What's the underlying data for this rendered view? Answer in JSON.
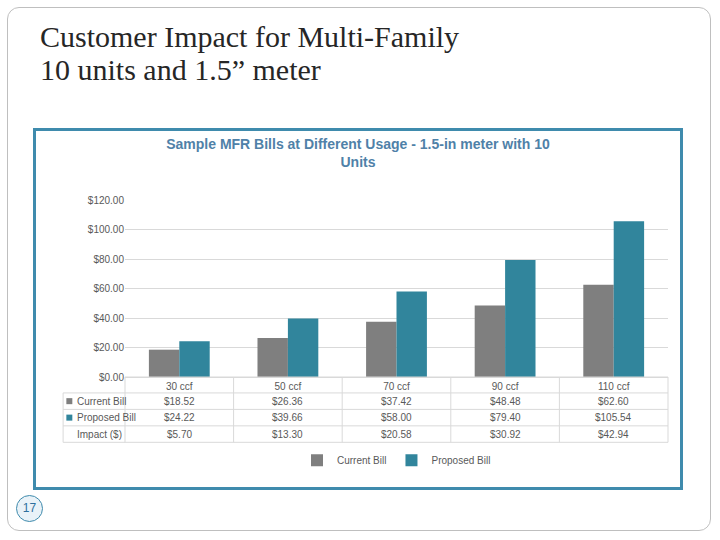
{
  "slide": {
    "title": "Customer Impact for Multi-Family\n10 units and 1.5” meter",
    "page_number": 17
  },
  "chart_data": {
    "type": "bar",
    "title": "Sample MFR Bills at Different Usage - 1.5-in meter with 10\nUnits",
    "categories": [
      "30 ccf",
      "50 ccf",
      "70 ccf",
      "90 ccf",
      "110 ccf"
    ],
    "series": [
      {
        "name": "Current Bill",
        "color": "#7f7f7f",
        "values": [
          18.52,
          26.36,
          37.42,
          48.48,
          62.6
        ],
        "value_labels": [
          "$18.52",
          "$26.36",
          "$37.42",
          "$48.48",
          "$62.60"
        ]
      },
      {
        "name": "Proposed Bill",
        "color": "#31859c",
        "values": [
          24.22,
          39.66,
          58.0,
          79.4,
          105.54
        ],
        "value_labels": [
          "$24.22",
          "$39.66",
          "$58.00",
          "$79.40",
          "$105.54"
        ]
      }
    ],
    "table_rows": [
      {
        "name": "Impact ($)",
        "values": [
          5.7,
          13.3,
          20.58,
          30.92,
          42.94
        ],
        "value_labels": [
          "$5.70",
          "$13.30",
          "$20.58",
          "$30.92",
          "$42.94"
        ]
      }
    ],
    "ylim": [
      0,
      120
    ],
    "yticks": [
      {
        "value": 0,
        "label": "$0.00"
      },
      {
        "value": 20,
        "label": "$20.00"
      },
      {
        "value": 40,
        "label": "$40.00"
      },
      {
        "value": 60,
        "label": "$60.00"
      },
      {
        "value": 80,
        "label": "$80.00"
      },
      {
        "value": 100,
        "label": "$100.00"
      },
      {
        "value": 120,
        "label": "$120.00"
      }
    ],
    "grid": true,
    "legend": "bottom"
  }
}
